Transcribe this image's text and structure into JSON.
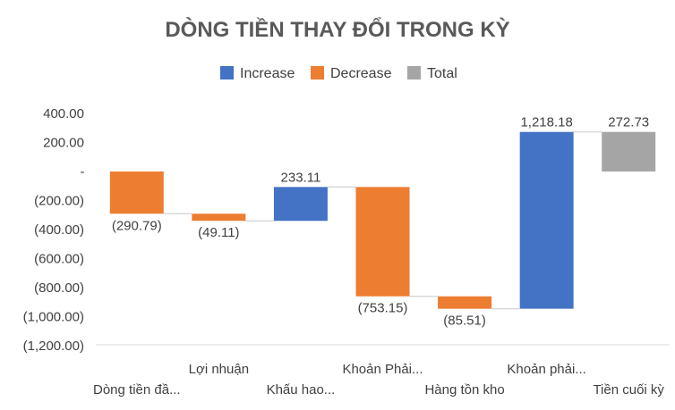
{
  "chart_data": {
    "type": "waterfall",
    "title": "DÒNG TIỀN THAY ĐỔI TRONG KỲ",
    "legend": [
      {
        "key": "increase",
        "label": "Increase",
        "color": "#4472C4"
      },
      {
        "key": "decrease",
        "label": "Decrease",
        "color": "#ED7D31"
      },
      {
        "key": "total",
        "label": "Total",
        "color": "#A5A5A5"
      }
    ],
    "categories": [
      "Dòng tiền đầ...",
      "Lợi nhuận",
      "Khấu hao...",
      "Khoản Phải...",
      "Hàng tồn kho",
      "Khoản phải...",
      "Tiền cuối kỳ"
    ],
    "values": [
      -290.79,
      -49.11,
      233.11,
      -753.15,
      -85.51,
      1218.18,
      272.73
    ],
    "kinds": [
      "decrease",
      "decrease",
      "increase",
      "decrease",
      "decrease",
      "increase",
      "total"
    ],
    "data_labels": [
      "(290.79)",
      "(49.11)",
      "233.11",
      "(753.15)",
      "(85.51)",
      "1,218.18",
      "272.73"
    ],
    "y_ticks": [
      400,
      200,
      0,
      -200,
      -400,
      -600,
      -800,
      -1000,
      -1200
    ],
    "y_tick_labels": [
      "400.00",
      "200.00",
      "-",
      "(200.00)",
      "(400.00)",
      "(600.00)",
      "(800.00)",
      "(1,000.00)",
      "(1,200.00)"
    ],
    "ylim": [
      -1200,
      400
    ],
    "xlabel": "",
    "ylabel": "",
    "grid": false,
    "legend_position": "top",
    "connector_color": "#D9D9D9",
    "axis_color": "#D9D9D9"
  }
}
